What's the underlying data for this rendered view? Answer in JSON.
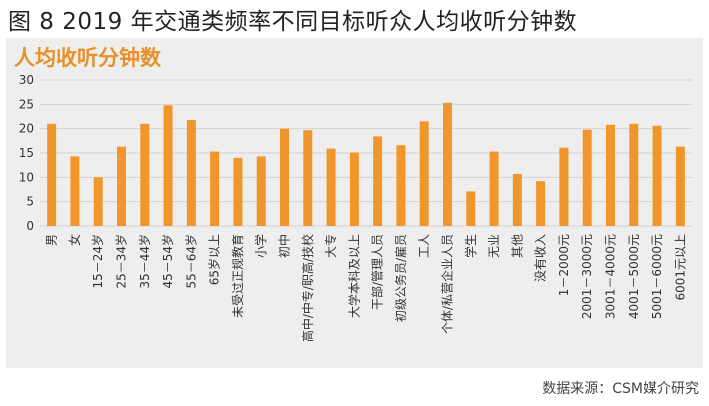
{
  "figure": {
    "title": "图 8 2019 年交通类频率不同目标听众人均收听分钟数",
    "source": "数据来源：CSM媒介研究"
  },
  "colors": {
    "bar": "#f0962a",
    "title_accent": "#e8912a",
    "panel": "#eeeeee",
    "grid": "#d2d2d2"
  },
  "chart_data": {
    "type": "bar",
    "title": "人均收听分钟数",
    "xlabel": "",
    "ylabel": "",
    "ylim": [
      0,
      30
    ],
    "yticks": [
      0,
      5,
      10,
      15,
      20,
      25,
      30
    ],
    "grid": true,
    "categories": [
      "男",
      "女",
      "15－24岁",
      "25－34岁",
      "35－44岁",
      "45－54岁",
      "55－64岁",
      "65岁以上",
      "未受过正规教育",
      "小学",
      "初中",
      "高中/中专/职高/技校",
      "大专",
      "大学本科及以上",
      "干部/管理人员",
      "初级公务员/雇员",
      "工人",
      "个体/私营企业人员",
      "学生",
      "无业",
      "其他",
      "没有收入",
      "1－2000元",
      "2001－3000元",
      "3001－4000元",
      "4001－5000元",
      "5001－6000元",
      "6001元以上"
    ],
    "values": [
      21,
      14.3,
      10,
      16.3,
      21,
      24.8,
      21.8,
      15.3,
      14,
      14.3,
      20,
      19.7,
      15.9,
      15.1,
      18.4,
      16.6,
      21.5,
      25.3,
      7.1,
      15.3,
      10.7,
      9.2,
      16.1,
      19.8,
      20.8,
      21,
      20.6,
      16.3
    ]
  }
}
